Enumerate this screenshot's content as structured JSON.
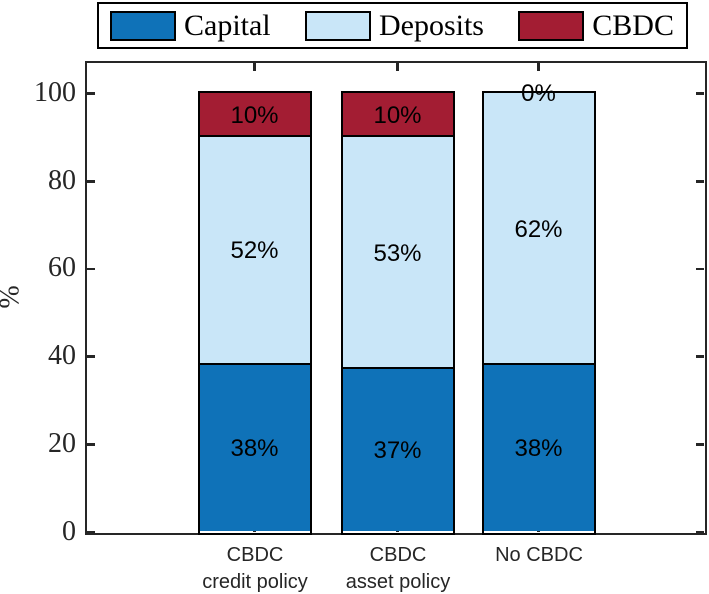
{
  "legend": {
    "items": [
      {
        "label": "Capital",
        "color": "#0F72B8"
      },
      {
        "label": "Deposits",
        "color": "#C9E6F8"
      },
      {
        "label": "CBDC",
        "color": "#A31D33"
      }
    ]
  },
  "axis": {
    "ylabel": "%",
    "ytick_labels": [
      "0",
      "20",
      "40",
      "60",
      "80",
      "100"
    ]
  },
  "chart_data": {
    "type": "bar",
    "stacked": true,
    "title": "",
    "xlabel": "",
    "ylabel": "%",
    "ylim": [
      0,
      100
    ],
    "yticks": [
      0,
      20,
      40,
      60,
      80,
      100
    ],
    "grid": false,
    "legend_position": "top",
    "categories": [
      [
        "CBDC",
        "credit policy"
      ],
      [
        "CBDC",
        "asset policy"
      ],
      [
        "No CBDC"
      ]
    ],
    "series": [
      {
        "name": "Capital",
        "color": "#0F72B8",
        "values": [
          38,
          37,
          38
        ],
        "labels": [
          "38%",
          "37%",
          "38%"
        ]
      },
      {
        "name": "Deposits",
        "color": "#C9E6F8",
        "values": [
          52,
          53,
          62
        ],
        "labels": [
          "52%",
          "53%",
          "62%"
        ]
      },
      {
        "name": "CBDC",
        "color": "#A31D33",
        "values": [
          10,
          10,
          0
        ],
        "labels": [
          "10%",
          "10%",
          "0%"
        ]
      }
    ]
  }
}
